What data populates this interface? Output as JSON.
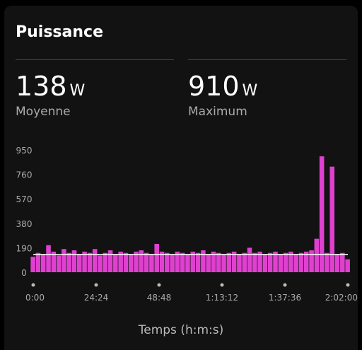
{
  "card": {
    "title": "Puissance",
    "stats": [
      {
        "value": "138",
        "unit": "W",
        "label": "Moyenne"
      },
      {
        "value": "910",
        "unit": "W",
        "label": "Maximum"
      }
    ]
  },
  "colors": {
    "series": "#e040d0",
    "average_line": "#ffffff",
    "text_muted": "#aaaaaa",
    "background": "#121212"
  },
  "chart_data": {
    "type": "area",
    "ylabel": "",
    "xlabel": "Temps (h:m:s)",
    "y_ticks": [
      "950",
      "760",
      "570",
      "380",
      "190",
      "0"
    ],
    "y_tick_values": [
      950,
      760,
      570,
      380,
      190,
      0
    ],
    "x_ticks": [
      "0:00",
      "24:24",
      "48:48",
      "1:13:12",
      "1:37:36",
      "2:02:00"
    ],
    "x_tick_seconds": [
      0,
      1464,
      2928,
      4392,
      5856,
      7320
    ],
    "ylim": [
      0,
      950
    ],
    "xlim_seconds": [
      0,
      7320
    ],
    "average": 138,
    "maximum": 910,
    "series": [
      {
        "x_seconds": [
          0,
          120,
          240,
          360,
          480,
          600,
          720,
          840,
          960,
          1080,
          1200,
          1320,
          1440,
          1560,
          1680,
          1800,
          1920,
          2040,
          2160,
          2280,
          2400,
          2520,
          2640,
          2760,
          2880,
          3000,
          3120,
          3240,
          3360,
          3480,
          3600,
          3720,
          3840,
          3960,
          4080,
          4200,
          4320,
          4440,
          4560,
          4680,
          4800,
          4920,
          5040,
          5160,
          5280,
          5400,
          5520,
          5640,
          5760,
          5880,
          6000,
          6120,
          6240,
          6360,
          6480,
          6600,
          6720,
          6840,
          6960,
          7080,
          7200,
          7320
        ],
        "values": [
          120,
          150,
          140,
          210,
          160,
          130,
          180,
          150,
          170,
          140,
          160,
          150,
          180,
          130,
          150,
          170,
          140,
          160,
          150,
          140,
          160,
          170,
          150,
          140,
          220,
          160,
          150,
          140,
          160,
          150,
          140,
          160,
          150,
          170,
          140,
          160,
          150,
          140,
          150,
          160,
          140,
          150,
          190,
          150,
          160,
          140,
          150,
          160,
          140,
          150,
          160,
          140,
          150,
          160,
          170,
          260,
          900,
          150,
          820,
          140,
          150,
          100
        ]
      }
    ]
  }
}
